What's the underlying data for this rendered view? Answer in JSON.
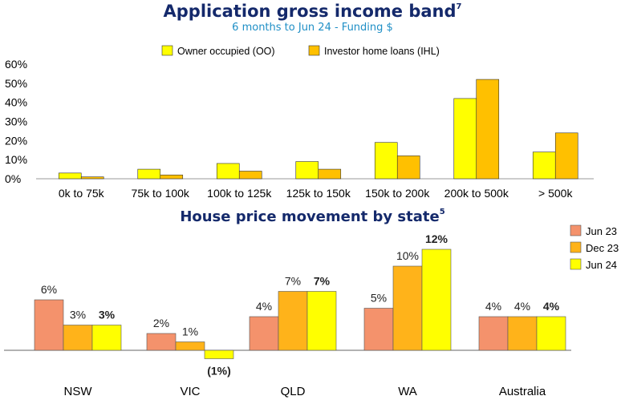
{
  "chart_data": [
    {
      "type": "bar",
      "title": "Application gross income band",
      "title_note": "7",
      "subtitle": "6 months to Jun 24 - Funding $",
      "categories": [
        "0k to 75k",
        "75k to 100k",
        "100k to 125k",
        "125k to 150k",
        "150k to 200k",
        "200k to 500k",
        "> 500k"
      ],
      "series": [
        {
          "name": "Owner occupied (OO)",
          "color": "#ffff00",
          "values": [
            3,
            5,
            8,
            9,
            19,
            42,
            14
          ]
        },
        {
          "name": "Investor home loans (IHL)",
          "color": "#ffc000",
          "values": [
            1,
            2,
            4,
            5,
            12,
            52,
            24
          ]
        }
      ],
      "yticks": [
        "0%",
        "10%",
        "20%",
        "30%",
        "40%",
        "50%",
        "60%"
      ],
      "ylim": [
        0,
        60
      ],
      "legend_position": "top",
      "grid": false
    },
    {
      "type": "bar",
      "title": "House price movement by state",
      "title_note": "5",
      "categories": [
        "NSW",
        "VIC",
        "QLD",
        "WA",
        "Australia"
      ],
      "series": [
        {
          "name": "Jun 23",
          "color": "#f4926c",
          "values": [
            6,
            2,
            4,
            5,
            4
          ],
          "labels": [
            "6%",
            "2%",
            "4%",
            "5%",
            "4%"
          ]
        },
        {
          "name": "Dec 23",
          "color": "#ffb31a",
          "values": [
            3,
            1,
            7,
            10,
            4
          ],
          "labels": [
            "3%",
            "1%",
            "7%",
            "10%",
            "4%"
          ]
        },
        {
          "name": "Jun 24",
          "color": "#ffff00",
          "values": [
            3,
            -1,
            7,
            12,
            4
          ],
          "labels": [
            "3%",
            "(1%)",
            "7%",
            "12%",
            "4%"
          ]
        }
      ],
      "legend_position": "right",
      "grid": false
    }
  ]
}
